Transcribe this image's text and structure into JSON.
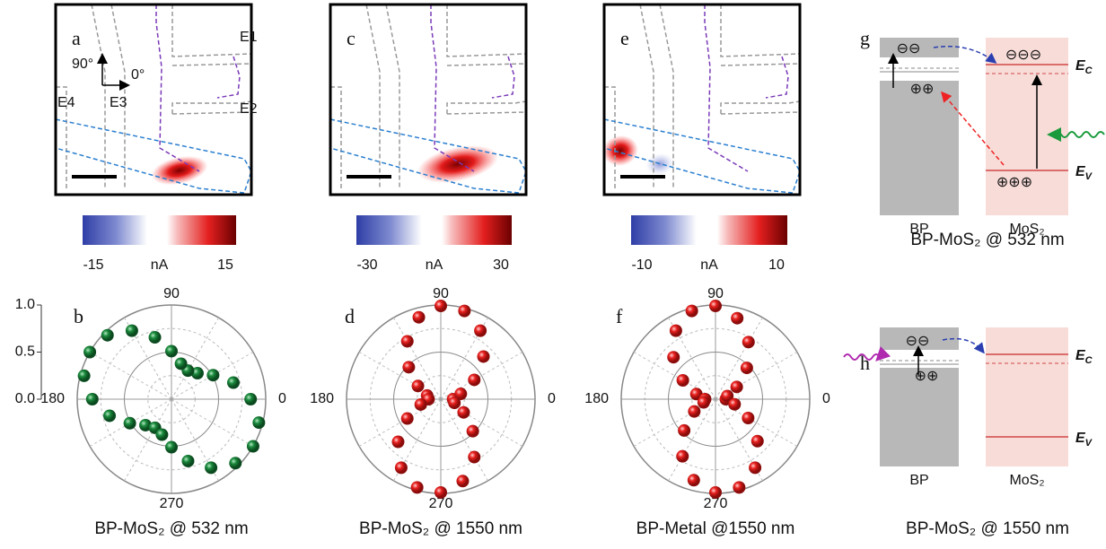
{
  "panels": {
    "a": {
      "letter": "a",
      "arrows": {
        "up": "90°",
        "right": "0°"
      },
      "electrodes": [
        "E1",
        "E2",
        "E3",
        "E4"
      ],
      "colorbar": {
        "clim": [
          -15,
          15
        ],
        "ticks": [
          -15,
          15
        ],
        "unit": "nA"
      }
    },
    "c": {
      "letter": "c",
      "colorbar": {
        "clim": [
          -30,
          30
        ],
        "ticks": [
          -30,
          30
        ],
        "unit": "nA"
      }
    },
    "e": {
      "letter": "e",
      "colorbar": {
        "clim": [
          -10,
          10
        ],
        "ticks": [
          -10,
          10
        ],
        "unit": "nA"
      }
    },
    "b": {
      "letter": "b",
      "caption": "BP-MoS₂ @ 532 nm",
      "chart": {
        "type": "polar-scatter",
        "color": "#1a8a3c",
        "theta": [
          0,
          15,
          30,
          45,
          60,
          75,
          90,
          105,
          120,
          135,
          150,
          165,
          180,
          195,
          210,
          225,
          240,
          255,
          270,
          285,
          300,
          315,
          330,
          345
        ],
        "r": [
          0.84,
          0.68,
          0.51,
          0.39,
          0.35,
          0.39,
          0.51,
          0.68,
          0.84,
          0.96,
          1.0,
          0.96,
          0.84,
          0.68,
          0.51,
          0.39,
          0.35,
          0.39,
          0.51,
          0.68,
          0.84,
          0.96,
          1.0,
          0.96
        ],
        "rlim": [
          0,
          1
        ],
        "rticks": [
          {
            "value": 0,
            "label": "0.0"
          },
          {
            "value": 0.5,
            "label": "0.5"
          },
          {
            "value": 1,
            "label": "1.0"
          }
        ],
        "thetaticks": [
          0,
          90,
          180,
          270
        ]
      }
    },
    "d": {
      "letter": "d",
      "caption": "BP-MoS₂ @ 1550 nm",
      "chart": {
        "type": "polar-scatter",
        "color": "#e8201e",
        "theta": [
          0,
          15,
          30,
          45,
          60,
          75,
          90,
          105,
          120,
          135,
          150,
          165,
          180,
          195,
          210,
          225,
          240,
          255,
          270,
          285,
          300,
          315,
          330,
          345
        ],
        "r": [
          0.13,
          0.22,
          0.41,
          0.64,
          0.84,
          0.97,
          0.99,
          0.9,
          0.71,
          0.48,
          0.28,
          0.15,
          0.13,
          0.22,
          0.41,
          0.64,
          0.84,
          0.97,
          0.99,
          0.9,
          0.71,
          0.48,
          0.28,
          0.15
        ],
        "rlim": [
          0,
          1
        ],
        "thetaticks": [
          0,
          90,
          180,
          270
        ]
      }
    },
    "f": {
      "letter": "f",
      "caption": "BP-Metal @1550 nm",
      "chart": {
        "type": "polar-scatter",
        "color": "#e8201e",
        "theta": [
          0,
          15,
          30,
          45,
          60,
          75,
          90,
          105,
          120,
          135,
          150,
          165,
          180,
          195,
          210,
          225,
          240,
          255,
          270,
          285,
          300,
          315,
          330,
          345
        ],
        "r": [
          0.11,
          0.13,
          0.26,
          0.47,
          0.7,
          0.89,
          0.99,
          0.97,
          0.84,
          0.63,
          0.4,
          0.21,
          0.11,
          0.13,
          0.26,
          0.47,
          0.7,
          0.89,
          0.99,
          0.97,
          0.84,
          0.63,
          0.4,
          0.21
        ],
        "rlim": [
          0,
          1
        ],
        "thetaticks": [
          0,
          90,
          180,
          270
        ]
      }
    },
    "g": {
      "letter": "g",
      "left": "BP",
      "right": "MoS₂",
      "ec": {
        "symbol": "E",
        "sub": "C"
      },
      "ev": {
        "symbol": "E",
        "sub": "V"
      },
      "electrons": [
        "⊖⊖",
        "⊖⊖⊖"
      ],
      "holes": [
        "⊕⊕",
        "⊕⊕⊕"
      ],
      "caption": "BP-MoS₂ @ 532 nm"
    },
    "h": {
      "letter": "h",
      "left": "BP",
      "right": "MoS₂",
      "ec": {
        "symbol": "E",
        "sub": "C"
      },
      "ev": {
        "symbol": "E",
        "sub": "V"
      },
      "electrons": [
        "⊖⊖"
      ],
      "holes": [
        "⊕⊕"
      ],
      "caption": "BP-MoS₂ @ 1550 nm"
    }
  }
}
